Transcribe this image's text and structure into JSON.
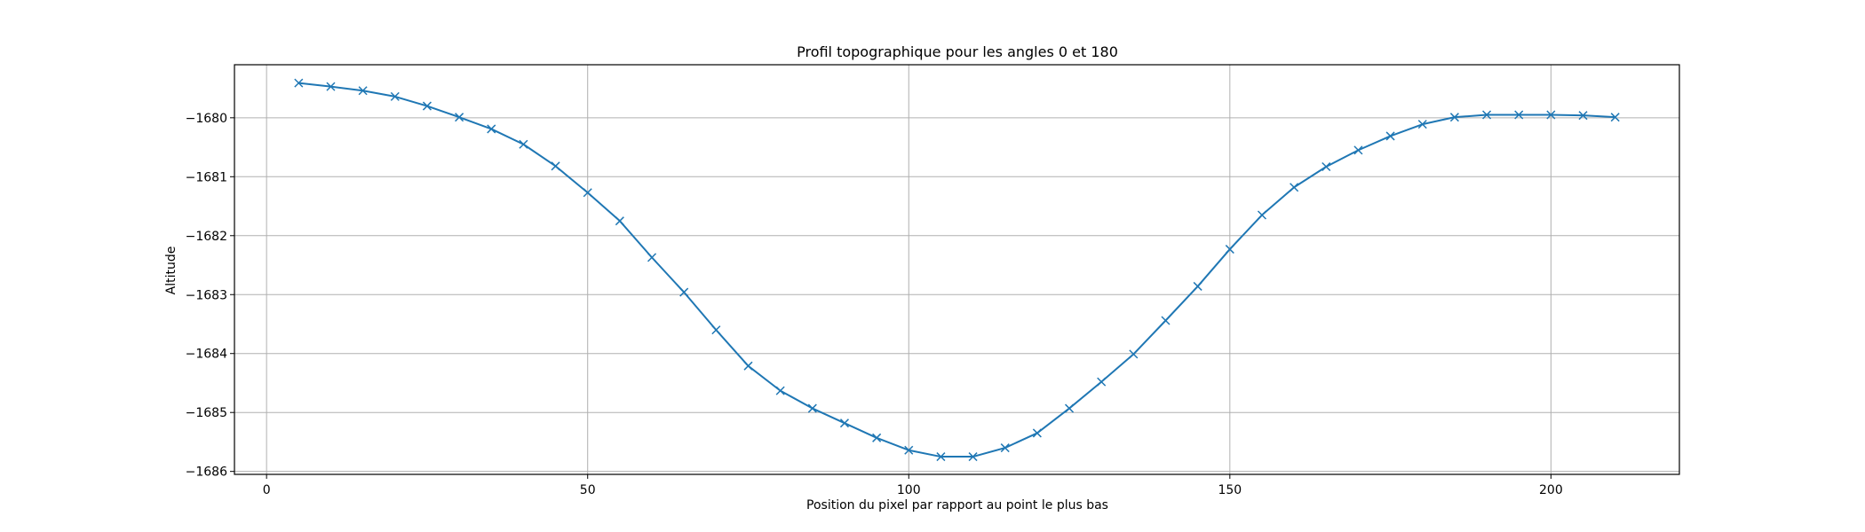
{
  "chart_data": {
    "type": "line",
    "title": "Profil topographique pour les angles 0 et 180",
    "xlabel": "Position du pixel par rapport au point le plus bas",
    "ylabel": "Altitude",
    "xlim": [
      -5,
      220
    ],
    "ylim": [
      -1686.05,
      -1679.1
    ],
    "xticks": [
      0,
      50,
      100,
      150,
      200
    ],
    "xtick_labels": [
      "0",
      "50",
      "100",
      "150",
      "200"
    ],
    "yticks": [
      -1686,
      -1685,
      -1684,
      -1683,
      -1682,
      -1681,
      -1680
    ],
    "ytick_labels": [
      "−1686",
      "−1685",
      "−1684",
      "−1683",
      "−1682",
      "−1681",
      "−1680"
    ],
    "grid": true,
    "legend": "none",
    "series": [
      {
        "color": "#1f77b4",
        "marker": "x",
        "x": [
          5,
          10,
          15,
          20,
          25,
          30,
          35,
          40,
          45,
          50,
          55,
          60,
          65,
          70,
          75,
          80,
          85,
          90,
          95,
          100,
          105,
          110,
          115,
          120,
          125,
          130,
          135,
          140,
          145,
          150,
          155,
          160,
          165,
          170,
          175,
          180,
          185,
          190,
          195,
          200,
          205,
          210
        ],
        "y": [
          -1679.41,
          -1679.47,
          -1679.54,
          -1679.64,
          -1679.8,
          -1679.99,
          -1680.19,
          -1680.45,
          -1680.82,
          -1681.27,
          -1681.75,
          -1682.37,
          -1682.96,
          -1683.6,
          -1684.21,
          -1684.63,
          -1684.93,
          -1685.18,
          -1685.43,
          -1685.64,
          -1685.75,
          -1685.75,
          -1685.6,
          -1685.35,
          -1684.93,
          -1684.48,
          -1684.01,
          -1683.44,
          -1682.86,
          -1682.23,
          -1681.65,
          -1681.18,
          -1680.83,
          -1680.55,
          -1680.31,
          -1680.11,
          -1679.99,
          -1679.95,
          -1679.95,
          -1679.95,
          -1679.96,
          -1679.99
        ]
      }
    ]
  }
}
